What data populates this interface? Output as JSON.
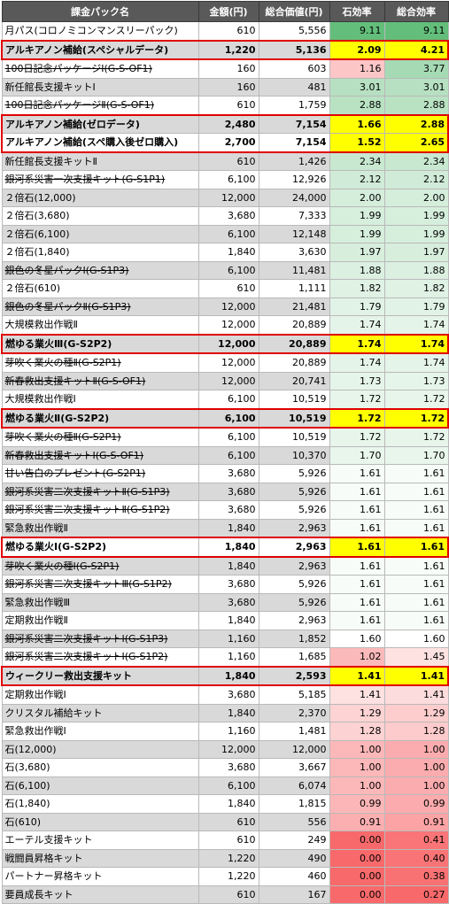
{
  "table": {
    "headers": [
      "課金パック名",
      "金額(円)",
      "総合価値(円)",
      "石効率",
      "総合効率"
    ],
    "rows": [
      {
        "name": "月パス(コロノミコンマンスリーパック)",
        "price": "610",
        "value": "5,556",
        "stone": "9.11",
        "total": "9.11",
        "strike": false,
        "hl": ""
      },
      {
        "name": "アルキアノン補給(スペシャルデータ)",
        "price": "1,220",
        "value": "5,136",
        "stone": "2.09",
        "total": "4.21",
        "strike": false,
        "hl": "single"
      },
      {
        "name": "100日記念パッケージⅠ(G-S-OF1)",
        "price": "160",
        "value": "603",
        "stone": "1.16",
        "total": "3.77",
        "strike": true,
        "hl": ""
      },
      {
        "name": "新任館長支援キットⅠ",
        "price": "160",
        "value": "481",
        "stone": "3.01",
        "total": "3.01",
        "strike": false,
        "hl": ""
      },
      {
        "name": "100日記念パッケージⅡ(G-S-OF1)",
        "price": "610",
        "value": "1,759",
        "stone": "2.88",
        "total": "2.88",
        "strike": true,
        "hl": ""
      },
      {
        "name": "アルキアノン補給(ゼロデータ)",
        "price": "2,480",
        "value": "7,154",
        "stone": "1.66",
        "total": "2.88",
        "strike": false,
        "hl": "top"
      },
      {
        "name": "アルキアノン補給(スペ購入後ゼロ購入)",
        "price": "2,700",
        "value": "7,154",
        "stone": "1.52",
        "total": "2.65",
        "strike": false,
        "hl": "bot"
      },
      {
        "name": "新任館長支援キットⅡ",
        "price": "610",
        "value": "1,426",
        "stone": "2.34",
        "total": "2.34",
        "strike": false,
        "hl": ""
      },
      {
        "name": "銀河系災害一次支援キット(G-S1P1)",
        "price": "6,100",
        "value": "12,926",
        "stone": "2.12",
        "total": "2.12",
        "strike": true,
        "hl": ""
      },
      {
        "name": "２倍石(12,000)",
        "price": "12,000",
        "value": "24,000",
        "stone": "2.00",
        "total": "2.00",
        "strike": false,
        "hl": ""
      },
      {
        "name": "２倍石(3,680)",
        "price": "3,680",
        "value": "7,333",
        "stone": "1.99",
        "total": "1.99",
        "strike": false,
        "hl": ""
      },
      {
        "name": "２倍石(6,100)",
        "price": "6,100",
        "value": "12,148",
        "stone": "1.99",
        "total": "1.99",
        "strike": false,
        "hl": ""
      },
      {
        "name": "２倍石(1,840)",
        "price": "1,840",
        "value": "3,630",
        "stone": "1.97",
        "total": "1.97",
        "strike": false,
        "hl": ""
      },
      {
        "name": "銀色の冬星パックⅠ(G-S1P3)",
        "price": "6,100",
        "value": "11,481",
        "stone": "1.88",
        "total": "1.88",
        "strike": true,
        "hl": ""
      },
      {
        "name": "２倍石(610)",
        "price": "610",
        "value": "1,111",
        "stone": "1.82",
        "total": "1.82",
        "strike": false,
        "hl": ""
      },
      {
        "name": "銀色の冬星パックⅡ(G-S1P3)",
        "price": "12,000",
        "value": "21,481",
        "stone": "1.79",
        "total": "1.79",
        "strike": true,
        "hl": ""
      },
      {
        "name": "大規模救出作戦Ⅱ",
        "price": "12,000",
        "value": "20,889",
        "stone": "1.74",
        "total": "1.74",
        "strike": false,
        "hl": ""
      },
      {
        "name": "燃ゆる業火Ⅲ(G-S2P2)",
        "price": "12,000",
        "value": "20,889",
        "stone": "1.74",
        "total": "1.74",
        "strike": false,
        "hl": "single"
      },
      {
        "name": "芽吹く業火の種Ⅱ(G-S2P1)",
        "price": "12,000",
        "value": "20,889",
        "stone": "1.74",
        "total": "1.74",
        "strike": true,
        "hl": ""
      },
      {
        "name": "新春救出支援キットⅡ(G-S-OF1)",
        "price": "12,000",
        "value": "20,741",
        "stone": "1.73",
        "total": "1.73",
        "strike": true,
        "hl": ""
      },
      {
        "name": "大規模救出作戦Ⅰ",
        "price": "6,100",
        "value": "10,519",
        "stone": "1.72",
        "total": "1.72",
        "strike": false,
        "hl": ""
      },
      {
        "name": "燃ゆる業火Ⅱ(G-S2P2)",
        "price": "6,100",
        "value": "10,519",
        "stone": "1.72",
        "total": "1.72",
        "strike": false,
        "hl": "single"
      },
      {
        "name": "芽吹く業火の種Ⅱ(G-S2P1)",
        "price": "6,100",
        "value": "10,519",
        "stone": "1.72",
        "total": "1.72",
        "strike": true,
        "hl": ""
      },
      {
        "name": "新春救出支援キットⅠ(G-S-OF1)",
        "price": "6,100",
        "value": "10,370",
        "stone": "1.70",
        "total": "1.70",
        "strike": true,
        "hl": ""
      },
      {
        "name": "甘い告白のプレゼント(G-S2P1)",
        "price": "3,680",
        "value": "5,926",
        "stone": "1.61",
        "total": "1.61",
        "strike": true,
        "hl": ""
      },
      {
        "name": "銀河系災害二次支援キットⅡ(G-S1P3)",
        "price": "3,680",
        "value": "5,926",
        "stone": "1.61",
        "total": "1.61",
        "strike": true,
        "hl": ""
      },
      {
        "name": "銀河系災害二次支援キットⅡ(G-S1P2)",
        "price": "3,680",
        "value": "5,926",
        "stone": "1.61",
        "total": "1.61",
        "strike": true,
        "hl": ""
      },
      {
        "name": "緊急救出作戦Ⅱ",
        "price": "1,840",
        "value": "2,963",
        "stone": "1.61",
        "total": "1.61",
        "strike": false,
        "hl": ""
      },
      {
        "name": "燃ゆる業火Ⅰ(G-S2P2)",
        "price": "1,840",
        "value": "2,963",
        "stone": "1.61",
        "total": "1.61",
        "strike": false,
        "hl": "single"
      },
      {
        "name": "芽吹く業火の種Ⅰ(G-S2P1)",
        "price": "1,840",
        "value": "2,963",
        "stone": "1.61",
        "total": "1.61",
        "strike": true,
        "hl": ""
      },
      {
        "name": "銀河系災害二次支援キットⅢ(G-S1P2)",
        "price": "3,680",
        "value": "5,926",
        "stone": "1.61",
        "total": "1.61",
        "strike": true,
        "hl": ""
      },
      {
        "name": "緊急救出作戦Ⅲ",
        "price": "3,680",
        "value": "5,926",
        "stone": "1.61",
        "total": "1.61",
        "strike": false,
        "hl": ""
      },
      {
        "name": "定期救出作戦Ⅱ",
        "price": "1,840",
        "value": "2,963",
        "stone": "1.61",
        "total": "1.61",
        "strike": false,
        "hl": ""
      },
      {
        "name": "銀河系災害二次支援キットⅠ(G-S1P3)",
        "price": "1,160",
        "value": "1,852",
        "stone": "1.60",
        "total": "1.60",
        "strike": true,
        "hl": ""
      },
      {
        "name": "銀河系災害二次支援キットⅠ(G-S1P2)",
        "price": "1,160",
        "value": "1,685",
        "stone": "1.02",
        "total": "1.45",
        "strike": true,
        "hl": ""
      },
      {
        "name": "ウィークリー救出支援キット",
        "price": "1,840",
        "value": "2,593",
        "stone": "1.41",
        "total": "1.41",
        "strike": false,
        "hl": "single"
      },
      {
        "name": "定期救出作戦Ⅰ",
        "price": "3,680",
        "value": "5,185",
        "stone": "1.41",
        "total": "1.41",
        "strike": false,
        "hl": ""
      },
      {
        "name": "クリスタル補給キット",
        "price": "1,840",
        "value": "2,370",
        "stone": "1.29",
        "total": "1.29",
        "strike": false,
        "hl": ""
      },
      {
        "name": "緊急救出作戦Ⅰ",
        "price": "1,160",
        "value": "1,481",
        "stone": "1.28",
        "total": "1.28",
        "strike": false,
        "hl": ""
      },
      {
        "name": "石(12,000)",
        "price": "12,000",
        "value": "12,000",
        "stone": "1.00",
        "total": "1.00",
        "strike": false,
        "hl": ""
      },
      {
        "name": "石(3,680)",
        "price": "3,680",
        "value": "3,667",
        "stone": "1.00",
        "total": "1.00",
        "strike": false,
        "hl": ""
      },
      {
        "name": "石(6,100)",
        "price": "6,100",
        "value": "6,074",
        "stone": "1.00",
        "total": "1.00",
        "strike": false,
        "hl": ""
      },
      {
        "name": "石(1,840)",
        "price": "1,840",
        "value": "1,815",
        "stone": "0.99",
        "total": "0.99",
        "strike": false,
        "hl": ""
      },
      {
        "name": "石(610)",
        "price": "610",
        "value": "556",
        "stone": "0.91",
        "total": "0.91",
        "strike": false,
        "hl": ""
      },
      {
        "name": "エーテル支援キット",
        "price": "610",
        "value": "249",
        "stone": "0.00",
        "total": "0.41",
        "strike": false,
        "hl": ""
      },
      {
        "name": "戦闘員昇格キット",
        "price": "1,220",
        "value": "490",
        "stone": "0.00",
        "total": "0.40",
        "strike": false,
        "hl": ""
      },
      {
        "name": "パートナー昇格キット",
        "price": "1,220",
        "value": "460",
        "stone": "0.00",
        "total": "0.38",
        "strike": false,
        "hl": ""
      },
      {
        "name": "要員成長キット",
        "price": "610",
        "value": "167",
        "stone": "0.00",
        "total": "0.27",
        "strike": false,
        "hl": ""
      }
    ]
  },
  "colors": {
    "header_bg": "#595959",
    "highlight_bg": "#ffff00",
    "highlight_border": "#e00000",
    "row_gray": "#d9d9d9",
    "scale_high": "#63be7b",
    "scale_mid": "#ffffff",
    "scale_low": "#f8696b"
  }
}
